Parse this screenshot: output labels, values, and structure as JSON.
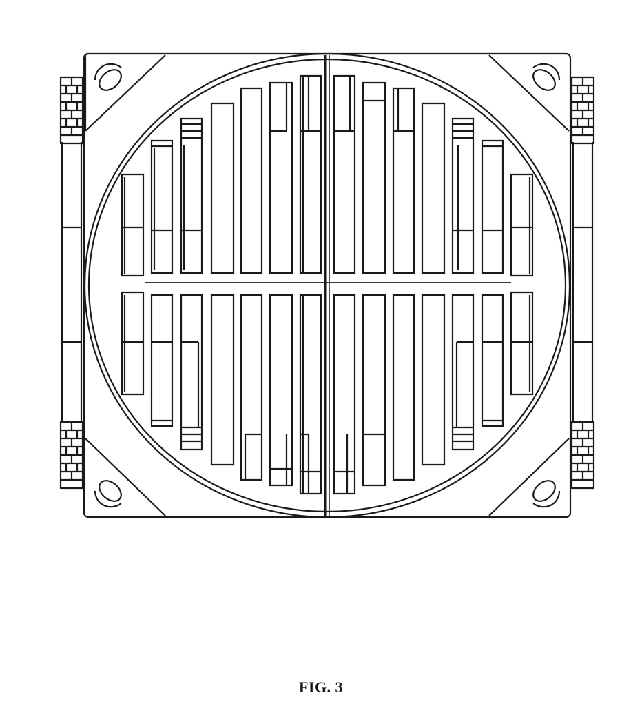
{
  "figure": {
    "caption": "FIG. 3"
  },
  "colors": {
    "ink": "#1a1a1a",
    "background": "#ffffff"
  }
}
